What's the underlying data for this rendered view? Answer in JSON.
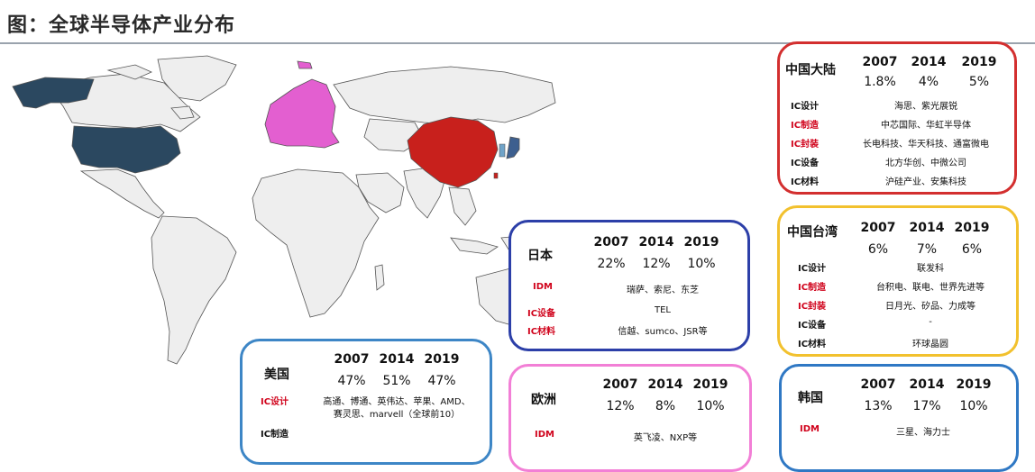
{
  "title": "图：全球半导体产业分布",
  "colors": {
    "usa": "#2b4860",
    "europe": "#e35fd0",
    "china": "#c8201c",
    "japan": "#3d5f8f",
    "land": "#eeeeee",
    "border": "#555555",
    "china_card": "#d32f2f",
    "japan_card": "#2c3fa8",
    "taiwan_card": "#f2c12e",
    "usa_card": "#3d86c6",
    "europe_card": "#f27fd6",
    "korea_card": "#2f78c4"
  },
  "cards": {
    "china": {
      "region": "中国大陆",
      "years": [
        "2007",
        "2014",
        "2019"
      ],
      "shares": [
        "1.8%",
        "4%",
        "5%"
      ],
      "rows": [
        {
          "label": "IC设计",
          "value": "海思、紫光展锐"
        },
        {
          "label": "IC制造",
          "value": "中芯国际、华虹半导体"
        },
        {
          "label": "IC封装",
          "value": "长电科技、华天科技、通富微电"
        },
        {
          "label": "IC设备",
          "value": "北方华创、中微公司"
        },
        {
          "label": "IC材料",
          "value": "沪硅产业、安集科技"
        }
      ]
    },
    "taiwan": {
      "region": "中国台湾",
      "years": [
        "2007",
        "2014",
        "2019"
      ],
      "shares": [
        "6%",
        "7%",
        "6%"
      ],
      "rows": [
        {
          "label": "IC设计",
          "value": "联发科"
        },
        {
          "label": "IC制造",
          "value": "台积电、联电、世界先进等"
        },
        {
          "label": "IC封装",
          "value": "日月光、矽品、力成等"
        },
        {
          "label": "IC设备",
          "value": "-"
        },
        {
          "label": "IC材料",
          "value": "环球晶圆"
        }
      ]
    },
    "japan": {
      "region": "日本",
      "years": [
        "2007",
        "2014",
        "2019"
      ],
      "shares": [
        "22%",
        "12%",
        "10%"
      ],
      "rows": [
        {
          "label": "IDM",
          "value": "瑞萨、索尼、东芝"
        },
        {
          "label": "IC设备",
          "value": "TEL"
        },
        {
          "label": "IC材料",
          "value": "信越、sumco、JSR等"
        }
      ]
    },
    "usa": {
      "region": "美国",
      "years": [
        "2007",
        "2014",
        "2019"
      ],
      "shares": [
        "47%",
        "51%",
        "47%"
      ],
      "rows": [
        {
          "label": "IC设计",
          "value1": "高通、博通、英伟达、苹果、AMD、",
          "value2": "赛灵思、marvell（全球前10）"
        },
        {
          "label": "IC制造",
          "value1": "",
          "value2": ""
        }
      ]
    },
    "europe": {
      "region": "欧洲",
      "years": [
        "2007",
        "2014",
        "2019"
      ],
      "shares": [
        "12%",
        "8%",
        "10%"
      ],
      "rows": [
        {
          "label": "IDM",
          "value": "英飞凌、NXP等"
        }
      ]
    },
    "korea": {
      "region": "韩国",
      "years": [
        "2007",
        "2014",
        "2019"
      ],
      "shares": [
        "13%",
        "17%",
        "10%"
      ],
      "rows": [
        {
          "label": "IDM",
          "value": "三星、海力士"
        }
      ]
    }
  }
}
